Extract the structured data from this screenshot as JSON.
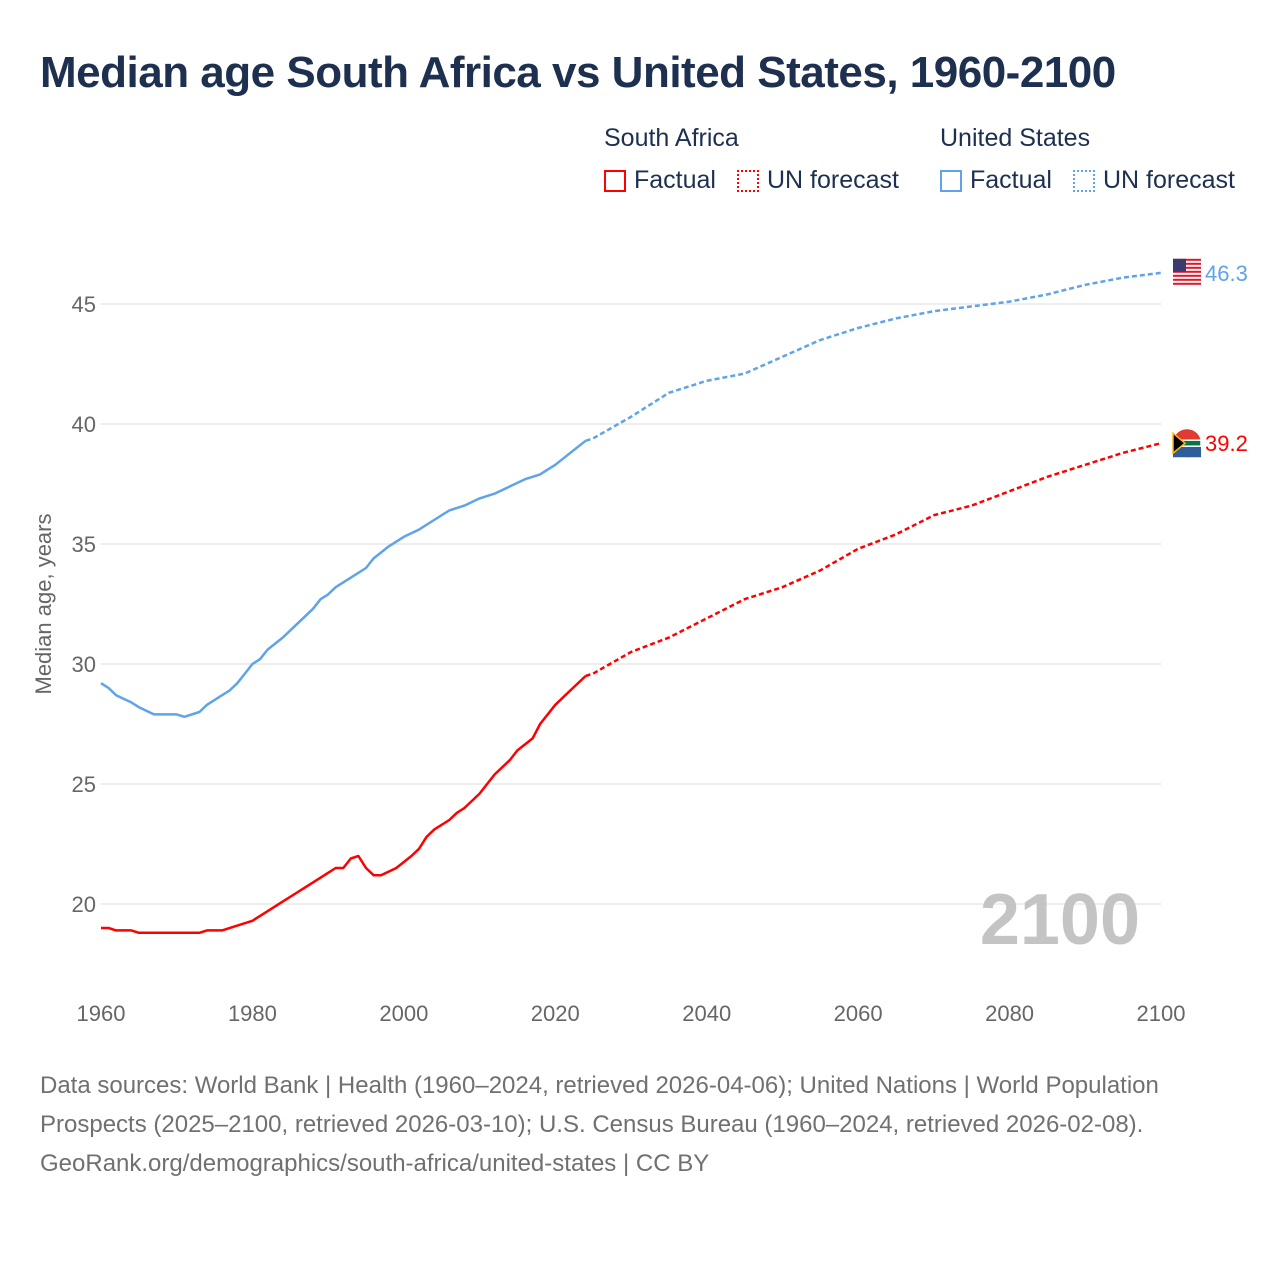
{
  "colors": {
    "south_africa": "#ff0000",
    "united_states": "#5fa3ea",
    "grid": "#e8e8e8",
    "axis_text": "#666666",
    "year_watermark": "#c4c4c4"
  },
  "legend": {
    "groups": [
      {
        "name": "South Africa",
        "items": [
          "Factual",
          "UN forecast"
        ]
      },
      {
        "name": "United States",
        "items": [
          "Factual",
          "UN forecast"
        ]
      }
    ]
  },
  "footer": {
    "sources": "Data sources: World Bank | Health (1960–2024, retrieved 2026-04-06); United Nations | World Population Prospects (2025–2100, retrieved 2026-03-10); U.S. Census Bureau (1960–2024, retrieved 2026-02-08).",
    "credit": "GeoRank.org/demographics/south-africa/united-states | CC BY"
  },
  "chart_data": {
    "type": "line",
    "title": "Median age South Africa vs United States, 1960-2100",
    "xlabel": "",
    "ylabel": "Median age, years",
    "xlim": [
      1960,
      2100
    ],
    "ylim": [
      17.5,
      47.5
    ],
    "xticks": [
      1960,
      1980,
      2000,
      2020,
      2040,
      2060,
      2080,
      2100
    ],
    "yticks": [
      20,
      25,
      30,
      35,
      40,
      45
    ],
    "grid": true,
    "legend_position": "top-right",
    "year_watermark": "2100",
    "series": [
      {
        "name": "South Africa",
        "color_key": "south_africa",
        "end_label": "39.2",
        "flag": "south-africa-flag",
        "factual": {
          "x": [
            1960,
            1961,
            1962,
            1964,
            1965,
            1973,
            1974,
            1976,
            1978,
            1980,
            1982,
            1984,
            1986,
            1988,
            1990,
            1991,
            1992,
            1993,
            1994,
            1995,
            1996,
            1997,
            1999,
            2001,
            2002,
            2003,
            2004,
            2006,
            2007,
            2008,
            2010,
            2011,
            2012,
            2013,
            2014,
            2015,
            2017,
            2018,
            2020,
            2022,
            2024
          ],
          "y": [
            19.0,
            19.0,
            18.9,
            18.9,
            18.8,
            18.8,
            18.9,
            18.9,
            19.1,
            19.3,
            19.7,
            20.1,
            20.5,
            20.9,
            21.3,
            21.5,
            21.5,
            21.9,
            22.0,
            21.5,
            21.2,
            21.2,
            21.5,
            22.0,
            22.3,
            22.8,
            23.1,
            23.5,
            23.8,
            24.0,
            24.6,
            25.0,
            25.4,
            25.7,
            26.0,
            26.4,
            26.9,
            27.5,
            28.3,
            28.9,
            29.5
          ]
        },
        "forecast": {
          "x": [
            2024,
            2025,
            2030,
            2035,
            2040,
            2045,
            2050,
            2055,
            2060,
            2065,
            2070,
            2075,
            2080,
            2085,
            2090,
            2095,
            2100
          ],
          "y": [
            29.5,
            29.6,
            30.5,
            31.1,
            31.9,
            32.7,
            33.2,
            33.9,
            34.8,
            35.4,
            36.2,
            36.6,
            37.2,
            37.8,
            38.3,
            38.8,
            39.2
          ]
        }
      },
      {
        "name": "United States",
        "color_key": "united_states",
        "end_label": "46.3",
        "flag": "united-states-flag",
        "factual": {
          "x": [
            1960,
            1961,
            1962,
            1964,
            1965,
            1967,
            1970,
            1971,
            1973,
            1974,
            1976,
            1977,
            1978,
            1979,
            1980,
            1981,
            1982,
            1984,
            1986,
            1988,
            1989,
            1990,
            1991,
            1993,
            1994,
            1995,
            1996,
            1998,
            2000,
            2002,
            2004,
            2006,
            2008,
            2010,
            2012,
            2014,
            2016,
            2018,
            2019,
            2020,
            2022,
            2024
          ],
          "y": [
            29.2,
            29.0,
            28.7,
            28.4,
            28.2,
            27.9,
            27.9,
            27.8,
            28.0,
            28.3,
            28.7,
            28.9,
            29.2,
            29.6,
            30.0,
            30.2,
            30.6,
            31.1,
            31.7,
            32.3,
            32.7,
            32.9,
            33.2,
            33.6,
            33.8,
            34.0,
            34.4,
            34.9,
            35.3,
            35.6,
            36.0,
            36.4,
            36.6,
            36.9,
            37.1,
            37.4,
            37.7,
            37.9,
            38.1,
            38.3,
            38.8,
            39.3
          ]
        },
        "forecast": {
          "x": [
            2024,
            2025,
            2030,
            2035,
            2040,
            2045,
            2050,
            2055,
            2060,
            2065,
            2070,
            2075,
            2080,
            2085,
            2090,
            2095,
            2100
          ],
          "y": [
            39.3,
            39.4,
            40.3,
            41.3,
            41.8,
            42.1,
            42.8,
            43.5,
            44.0,
            44.4,
            44.7,
            44.9,
            45.1,
            45.4,
            45.8,
            46.1,
            46.3
          ]
        }
      }
    ]
  }
}
